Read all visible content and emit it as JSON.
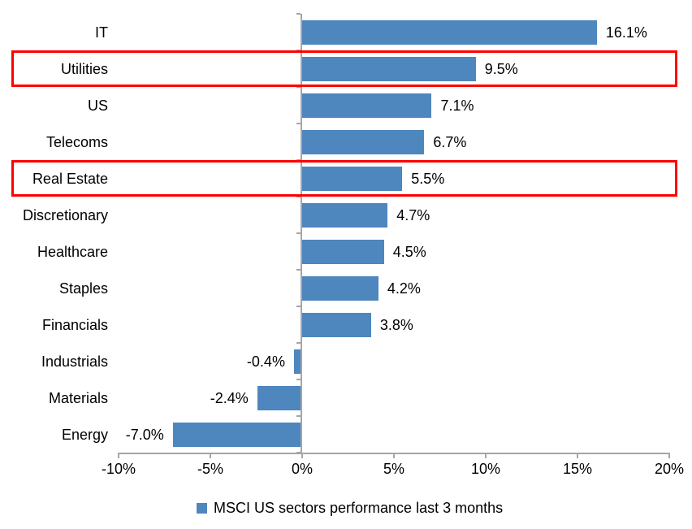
{
  "chart_data": {
    "type": "bar",
    "orientation": "horizontal",
    "categories": [
      "IT",
      "Utilities",
      "US",
      "Telecoms",
      "Real Estate",
      "Discretionary",
      "Healthcare",
      "Staples",
      "Financials",
      "Industrials",
      "Materials",
      "Energy"
    ],
    "values": [
      16.1,
      9.5,
      7.1,
      6.7,
      5.5,
      4.7,
      4.5,
      4.2,
      3.8,
      -0.4,
      -2.4,
      -7.0
    ],
    "value_labels": [
      "16.1%",
      "9.5%",
      "7.1%",
      "6.7%",
      "5.5%",
      "4.7%",
      "4.5%",
      "4.2%",
      "3.8%",
      "-0.4%",
      "-2.4%",
      "-7.0%"
    ],
    "xlim": [
      -10,
      20
    ],
    "x_tick_values": [
      -10,
      -5,
      0,
      5,
      10,
      15,
      20
    ],
    "x_tick_labels": [
      "-10%",
      "-5%",
      "0%",
      "5%",
      "10%",
      "15%",
      "20%"
    ],
    "grid": false,
    "legend_position": "bottom",
    "legend": [
      {
        "label": "MSCI US sectors performance last 3 months",
        "color": "#4e86be"
      }
    ],
    "highlighted_categories": [
      "Utilities",
      "Real Estate"
    ],
    "colors": {
      "bar": "#4e86be",
      "axis": "#a6a6a6",
      "highlight": "#ff0000",
      "text": "#000000",
      "background": "#ffffff"
    }
  }
}
